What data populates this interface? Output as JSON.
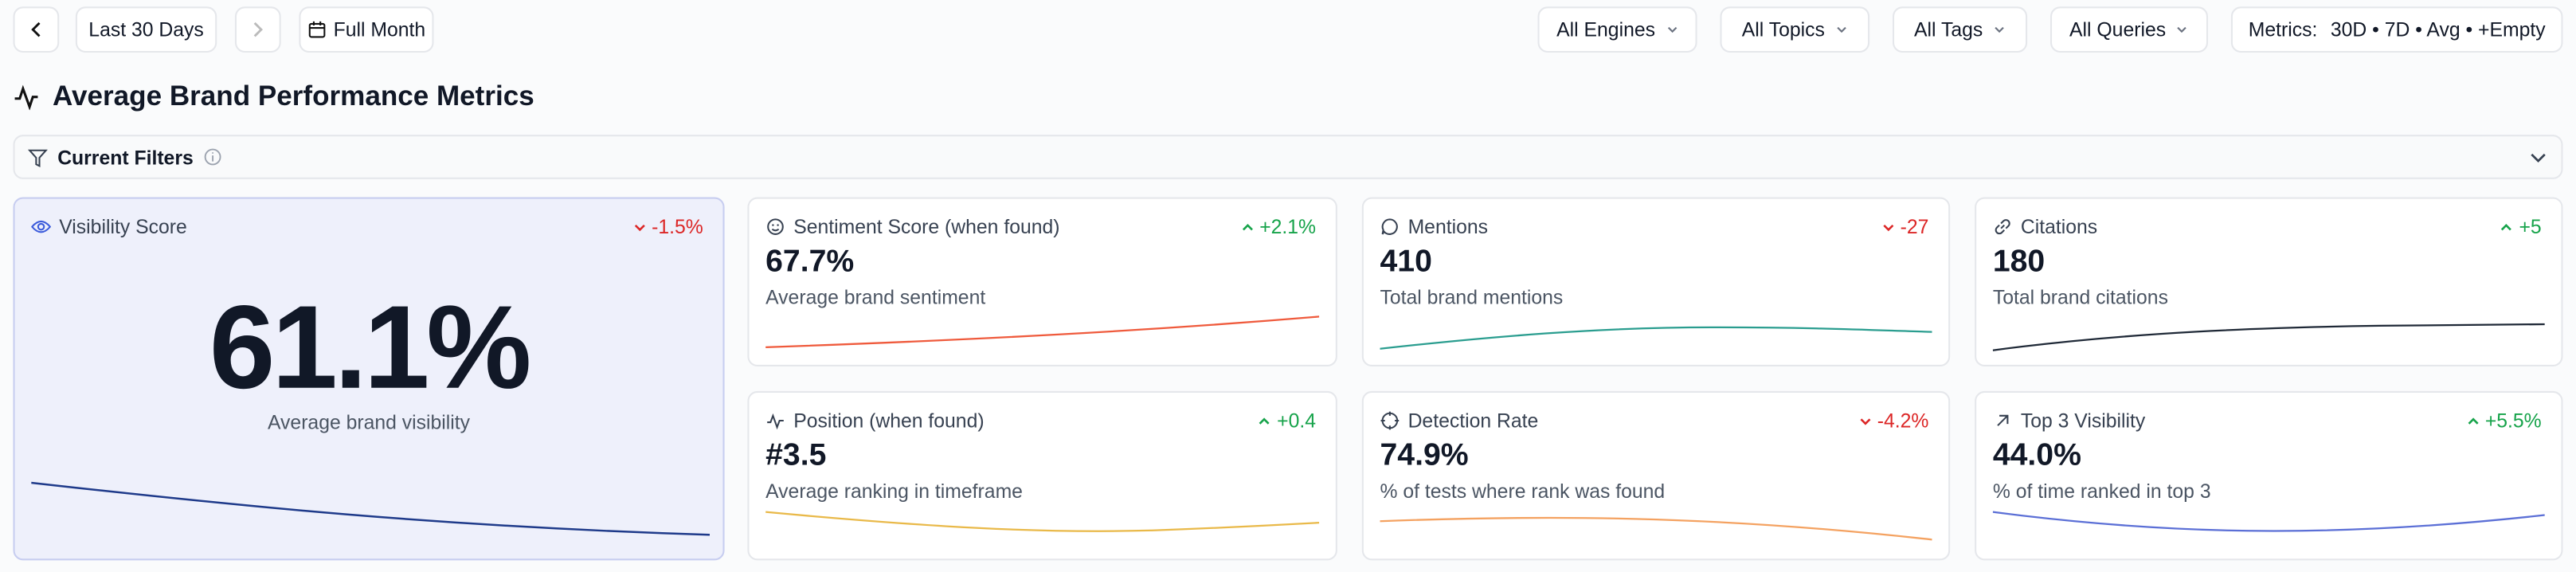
{
  "toolbar": {
    "range_label": "Last 30 Days",
    "period_label": "Full Month",
    "filters": [
      "All Engines",
      "All Topics",
      "All Tags",
      "All Queries"
    ],
    "metrics_label": "Metrics:",
    "metrics_value": "30D • 7D • Avg • +Empty"
  },
  "title": "Average Brand Performance Metrics",
  "current_filters": "Current Filters",
  "main_card": {
    "title": "Visibility Score",
    "change": "-1.5%",
    "value": "61.1%",
    "description": "Average brand visibility",
    "line_color": "#1e3a8a"
  },
  "cards": [
    {
      "title": "Sentiment Score (when found)",
      "change": "+2.1%",
      "value": "67.7%",
      "description": "Average brand sentiment",
      "line_color": "#ef5a3c"
    },
    {
      "title": "Mentions",
      "change": "-27",
      "value": "410",
      "description": "Total brand mentions",
      "line_color": "#2a9d8f"
    },
    {
      "title": "Citations",
      "change": "+5",
      "value": "180",
      "description": "Total brand citations",
      "line_color": "#1f2937"
    },
    {
      "title": "Position (when found)",
      "change": "+0.4",
      "value": "#3.5",
      "description": "Average ranking in timeframe",
      "line_color": "#e9b949"
    },
    {
      "title": "Detection Rate",
      "change": "-4.2%",
      "value": "74.9%",
      "description": "% of tests where rank was found",
      "line_color": "#f4a261"
    },
    {
      "title": "Top 3 Visibility",
      "change": "+5.5%",
      "value": "44.0%",
      "description": "% of time ranked in top 3",
      "line_color": "#5b6fd6"
    }
  ]
}
